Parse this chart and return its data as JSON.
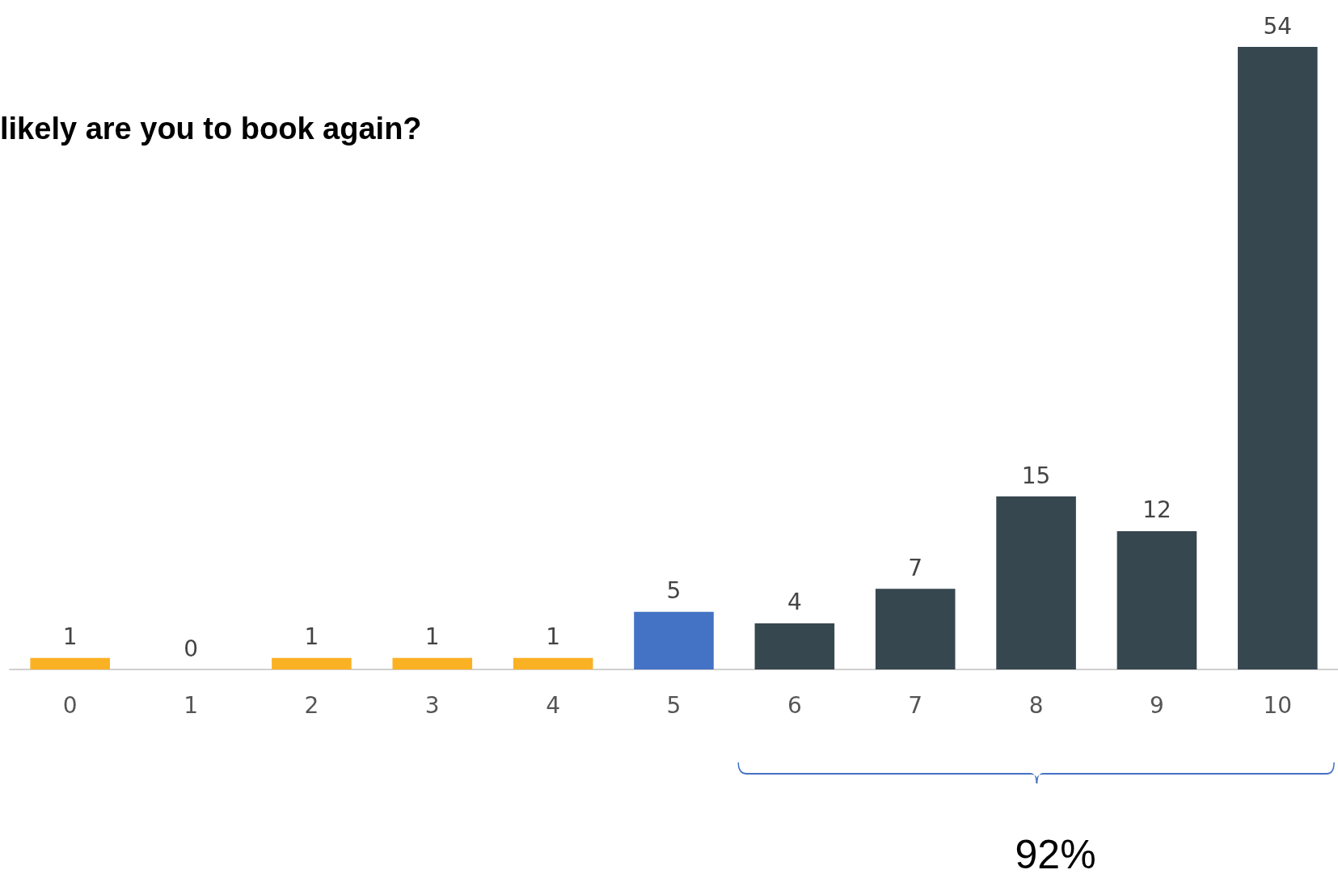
{
  "chart_data": {
    "type": "bar",
    "title": "likely are you to book again?",
    "categories": [
      "0",
      "1",
      "2",
      "3",
      "4",
      "5",
      "6",
      "7",
      "8",
      "9",
      "10"
    ],
    "values": [
      1,
      0,
      1,
      1,
      1,
      5,
      4,
      7,
      15,
      12,
      54
    ],
    "colors": [
      "#fbb124",
      "#fbb124",
      "#fbb124",
      "#fbb124",
      "#fbb124",
      "#4472c4",
      "#37474f",
      "#37474f",
      "#37474f",
      "#37474f",
      "#37474f"
    ],
    "data_labels": true,
    "grid": false,
    "annotations": [
      "92%"
    ]
  }
}
